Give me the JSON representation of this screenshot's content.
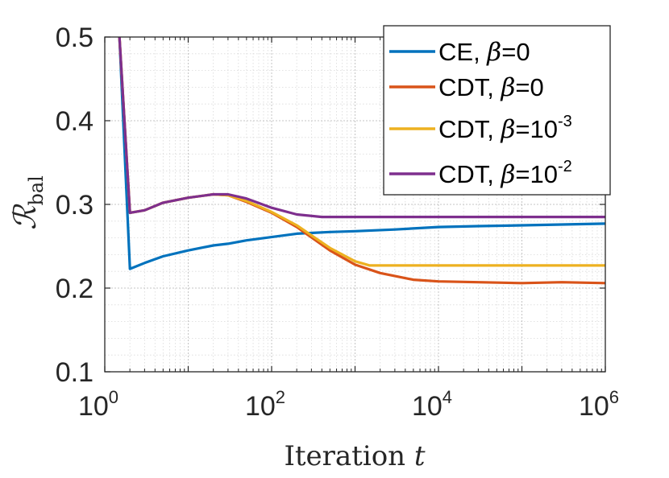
{
  "chart_data": {
    "type": "line",
    "xlabel": "Iteration t",
    "ylabel": "R_bal",
    "xscale": "log",
    "xlim": [
      1,
      1000000
    ],
    "ylim": [
      0.1,
      0.5
    ],
    "grid": "on (major and minor)",
    "legend_position": "top-right",
    "x_ticks": [
      {
        "base": "10",
        "exp": "0"
      },
      {
        "base": "10",
        "exp": "2"
      },
      {
        "base": "10",
        "exp": "4"
      },
      {
        "base": "10",
        "exp": "6"
      }
    ],
    "y_ticks": [
      "0.1",
      "0.2",
      "0.3",
      "0.4",
      "0.5"
    ],
    "series": [
      {
        "name": "CE, β=0",
        "label_prefix": "CE, ",
        "label_beta": "β",
        "label_eq": "=0",
        "label_exp": "",
        "color": "#0072BD",
        "points": [
          [
            1.5,
            0.5
          ],
          [
            2,
            0.223
          ],
          [
            3,
            0.23
          ],
          [
            5,
            0.238
          ],
          [
            10,
            0.245
          ],
          [
            20,
            0.251
          ],
          [
            30,
            0.253
          ],
          [
            50,
            0.257
          ],
          [
            100,
            0.261
          ],
          [
            200,
            0.265
          ],
          [
            500,
            0.267
          ],
          [
            1000,
            0.268
          ],
          [
            3000,
            0.27
          ],
          [
            10000,
            0.273
          ],
          [
            30000,
            0.274
          ],
          [
            100000,
            0.275
          ],
          [
            300000,
            0.276
          ],
          [
            1000000,
            0.277
          ]
        ]
      },
      {
        "name": "CDT, β=0",
        "label_prefix": "CDT, ",
        "label_beta": "β",
        "label_eq": "=0",
        "label_exp": "",
        "color": "#D95319",
        "points": [
          [
            1.5,
            0.5
          ],
          [
            2,
            0.29
          ],
          [
            3,
            0.293
          ],
          [
            5,
            0.302
          ],
          [
            10,
            0.308
          ],
          [
            20,
            0.312
          ],
          [
            30,
            0.311
          ],
          [
            50,
            0.303
          ],
          [
            100,
            0.29
          ],
          [
            200,
            0.273
          ],
          [
            500,
            0.245
          ],
          [
            1000,
            0.228
          ],
          [
            2000,
            0.218
          ],
          [
            5000,
            0.21
          ],
          [
            10000,
            0.208
          ],
          [
            30000,
            0.207
          ],
          [
            100000,
            0.206
          ],
          [
            300000,
            0.207
          ],
          [
            1000000,
            0.206
          ]
        ]
      },
      {
        "name": "CDT, β=10^-3",
        "label_prefix": "CDT, ",
        "label_beta": "β",
        "label_eq": "=10",
        "label_exp": "-3",
        "color": "#EDB120",
        "points": [
          [
            1.5,
            0.5
          ],
          [
            2,
            0.29
          ],
          [
            3,
            0.293
          ],
          [
            5,
            0.302
          ],
          [
            10,
            0.308
          ],
          [
            20,
            0.312
          ],
          [
            30,
            0.311
          ],
          [
            50,
            0.304
          ],
          [
            100,
            0.291
          ],
          [
            200,
            0.275
          ],
          [
            500,
            0.248
          ],
          [
            1000,
            0.232
          ],
          [
            1500,
            0.227
          ],
          [
            3000,
            0.227
          ],
          [
            10000,
            0.227
          ],
          [
            100000,
            0.227
          ],
          [
            1000000,
            0.227
          ]
        ]
      },
      {
        "name": "CDT, β=10^-2",
        "label_prefix": "CDT, ",
        "label_beta": "β",
        "label_eq": "=10",
        "label_exp": "-2",
        "color": "#7E2F8E",
        "points": [
          [
            1.5,
            0.5
          ],
          [
            2,
            0.29
          ],
          [
            3,
            0.293
          ],
          [
            5,
            0.302
          ],
          [
            10,
            0.308
          ],
          [
            20,
            0.312
          ],
          [
            30,
            0.312
          ],
          [
            50,
            0.307
          ],
          [
            100,
            0.296
          ],
          [
            200,
            0.288
          ],
          [
            400,
            0.285
          ],
          [
            1000,
            0.285
          ],
          [
            10000,
            0.285
          ],
          [
            1000000,
            0.285
          ]
        ]
      }
    ]
  }
}
